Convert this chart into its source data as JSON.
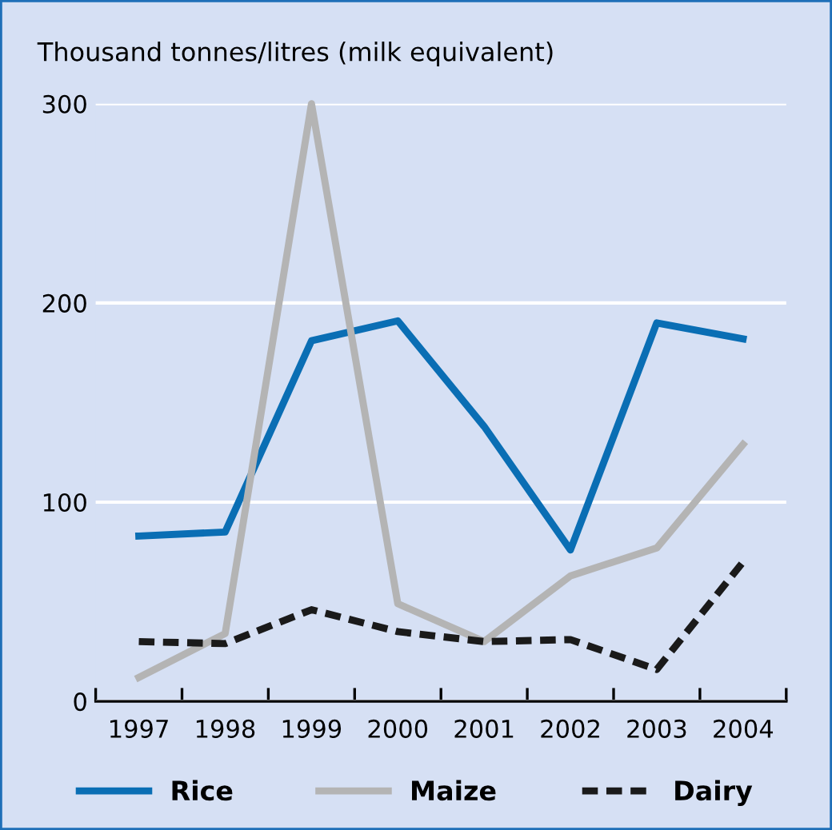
{
  "chart_data": {
    "type": "line",
    "ylabel": "Thousand tonnes/litres (milk equivalent)",
    "categories": [
      "1997",
      "1998",
      "1999",
      "2000",
      "2001",
      "2002",
      "2003",
      "2004"
    ],
    "series": [
      {
        "name": "Rice",
        "color": "#0a6eb4",
        "values": [
          83,
          85,
          181,
          191,
          138,
          76,
          190,
          182
        ],
        "line_style": "solid"
      },
      {
        "name": "Maize",
        "color": "#b4b4b4",
        "values": [
          12,
          34,
          300,
          49,
          30,
          63,
          77,
          129
        ],
        "line_style": "solid"
      },
      {
        "name": "Dairy",
        "color": "#1a1a1a",
        "values": [
          30,
          29,
          46,
          35,
          30,
          31,
          16,
          70
        ],
        "line_style": "dashed"
      }
    ],
    "ylim": [
      0,
      300
    ],
    "yticks": [
      0,
      100,
      200,
      300
    ],
    "grid": "y",
    "legend": "bottom",
    "marker": "none"
  }
}
